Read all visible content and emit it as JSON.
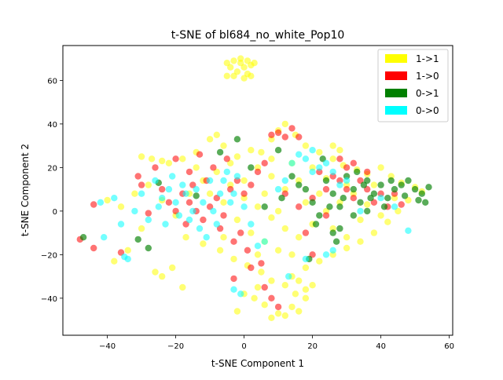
{
  "chart_data": {
    "type": "scatter",
    "title": "t-SNE of bl684_no_white_Pop10",
    "xlabel": "t-SNE Component 1",
    "ylabel": "t-SNE Component 2",
    "xlim": [
      -53,
      61
    ],
    "ylim": [
      -57,
      76
    ],
    "xticks": [
      -40,
      -20,
      0,
      20,
      40,
      60
    ],
    "yticks": [
      -40,
      -20,
      0,
      20,
      40,
      60
    ],
    "xtick_labels": [
      "−40",
      "−20",
      "0",
      "20",
      "40",
      "60"
    ],
    "ytick_labels": [
      "−40",
      "−20",
      "0",
      "20",
      "40",
      "60"
    ],
    "grid": false,
    "legend_position": "top-right",
    "series": [
      {
        "name": "1->1",
        "color": "#ffff00",
        "opacity": 0.55,
        "points": [
          [
            -5,
            68
          ],
          [
            -3,
            69
          ],
          [
            -1,
            68
          ],
          [
            1,
            69
          ],
          [
            2,
            67
          ],
          [
            -4,
            66
          ],
          [
            0,
            66
          ],
          [
            -2,
            64
          ],
          [
            1,
            63
          ],
          [
            -5,
            62
          ],
          [
            -3,
            62
          ],
          [
            0,
            61
          ],
          [
            2,
            62
          ],
          [
            -1,
            70
          ],
          [
            3,
            68
          ],
          [
            -30,
            25
          ],
          [
            -27,
            24
          ],
          [
            -24,
            23
          ],
          [
            -22,
            22
          ],
          [
            -18,
            24
          ],
          [
            -14,
            27
          ],
          [
            -10,
            33
          ],
          [
            -8,
            35
          ],
          [
            -6,
            30
          ],
          [
            -2,
            25
          ],
          [
            2,
            28
          ],
          [
            5,
            27
          ],
          [
            8,
            33
          ],
          [
            10,
            37
          ],
          [
            12,
            40
          ],
          [
            15,
            35
          ],
          [
            18,
            30
          ],
          [
            22,
            27
          ],
          [
            26,
            24
          ],
          [
            29,
            21
          ],
          [
            33,
            19
          ],
          [
            36,
            17
          ],
          [
            40,
            20
          ],
          [
            43,
            16
          ],
          [
            46,
            13
          ],
          [
            50,
            11
          ],
          [
            52,
            9
          ],
          [
            48,
            5
          ],
          [
            45,
            0
          ],
          [
            42,
            -5
          ],
          [
            38,
            -10
          ],
          [
            34,
            -14
          ],
          [
            30,
            -17
          ],
          [
            26,
            -20
          ],
          [
            22,
            -23
          ],
          [
            18,
            -26
          ],
          [
            14,
            -30
          ],
          [
            12,
            -34
          ],
          [
            15,
            -38
          ],
          [
            18,
            -40
          ],
          [
            14,
            -44
          ],
          [
            10,
            -47
          ],
          [
            8,
            -49
          ],
          [
            12,
            -48
          ],
          [
            16,
            -46
          ],
          [
            6,
            -43
          ],
          [
            3,
            -40
          ],
          [
            0,
            -38
          ],
          [
            4,
            -35
          ],
          [
            8,
            -32
          ],
          [
            16,
            -32
          ],
          [
            20,
            -34
          ],
          [
            18,
            -36
          ],
          [
            -2,
            -46
          ],
          [
            5,
            -28
          ],
          [
            1,
            -25
          ],
          [
            -3,
            -22
          ],
          [
            -7,
            -18
          ],
          [
            -12,
            -15
          ],
          [
            -17,
            -12
          ],
          [
            -21,
            -26
          ],
          [
            -24,
            -30
          ],
          [
            -26,
            -28
          ],
          [
            -18,
            -35
          ],
          [
            -30,
            -8
          ],
          [
            -34,
            -18
          ],
          [
            -38,
            -23
          ],
          [
            -40,
            5
          ],
          [
            -36,
            2
          ],
          [
            -32,
            8
          ],
          [
            -28,
            12
          ],
          [
            -24,
            5
          ],
          [
            -20,
            -2
          ],
          [
            -16,
            8
          ],
          [
            -12,
            14
          ],
          [
            -8,
            18
          ],
          [
            -4,
            12
          ],
          [
            0,
            6
          ],
          [
            4,
            2
          ],
          [
            8,
            -3
          ],
          [
            12,
            -8
          ],
          [
            16,
            -12
          ],
          [
            20,
            -6
          ],
          [
            24,
            0
          ],
          [
            28,
            4
          ],
          [
            32,
            8
          ],
          [
            36,
            3
          ],
          [
            40,
            -2
          ],
          [
            44,
            6
          ],
          [
            38,
            12
          ],
          [
            30,
            12
          ],
          [
            24,
            15
          ],
          [
            20,
            20
          ],
          [
            16,
            14
          ],
          [
            12,
            10
          ],
          [
            8,
            16
          ],
          [
            4,
            20
          ],
          [
            0,
            14
          ],
          [
            -4,
            22
          ],
          [
            14,
            22
          ],
          [
            6,
            8
          ],
          [
            10,
            0
          ],
          [
            18,
            4
          ],
          [
            22,
            8
          ],
          [
            26,
            -8
          ],
          [
            30,
            -12
          ],
          [
            34,
            -4
          ],
          [
            2,
            -10
          ],
          [
            -2,
            -4
          ],
          [
            6,
            -14
          ],
          [
            10,
            -18
          ],
          [
            14,
            -20
          ],
          [
            -6,
            4
          ],
          [
            -10,
            8
          ],
          [
            -14,
            20
          ],
          [
            26,
            30
          ],
          [
            28,
            28
          ],
          [
            8,
            24
          ],
          [
            -6,
            -12
          ],
          [
            4,
            -20
          ]
        ]
      },
      {
        "name": "1->0",
        "color": "#ff0000",
        "opacity": 0.55,
        "points": [
          [
            -48,
            -13
          ],
          [
            -44,
            -17
          ],
          [
            -44,
            3
          ],
          [
            -36,
            -19
          ],
          [
            -31,
            16
          ],
          [
            -30,
            12
          ],
          [
            -28,
            -1
          ],
          [
            -26,
            20
          ],
          [
            -24,
            10
          ],
          [
            -22,
            4
          ],
          [
            -20,
            0
          ],
          [
            -18,
            8
          ],
          [
            -16,
            4
          ],
          [
            -14,
            0
          ],
          [
            -12,
            -4
          ],
          [
            -10,
            2
          ],
          [
            -8,
            6
          ],
          [
            -6,
            -2
          ],
          [
            -4,
            10
          ],
          [
            -2,
            14
          ],
          [
            0,
            8
          ],
          [
            2,
            12
          ],
          [
            4,
            18
          ],
          [
            6,
            22
          ],
          [
            -13,
            26
          ],
          [
            -9,
            20
          ],
          [
            -5,
            24
          ],
          [
            -11,
            14
          ],
          [
            -15,
            12
          ],
          [
            -7,
            -8
          ],
          [
            -3,
            -14
          ],
          [
            1,
            -18
          ],
          [
            5,
            -24
          ],
          [
            -17,
            -6
          ],
          [
            -20,
            24
          ],
          [
            -16,
            18
          ],
          [
            8,
            35
          ],
          [
            10,
            36
          ],
          [
            12,
            34
          ],
          [
            14,
            38
          ],
          [
            16,
            34
          ],
          [
            12,
            8
          ],
          [
            16,
            2
          ],
          [
            20,
            6
          ],
          [
            24,
            10
          ],
          [
            28,
            14
          ],
          [
            30,
            10
          ],
          [
            32,
            6
          ],
          [
            34,
            14
          ],
          [
            36,
            10
          ],
          [
            38,
            4
          ],
          [
            40,
            8
          ],
          [
            42,
            2
          ],
          [
            44,
            8
          ],
          [
            36,
            18
          ],
          [
            30,
            20
          ],
          [
            26,
            16
          ],
          [
            22,
            18
          ],
          [
            18,
            -10
          ],
          [
            20,
            -20
          ],
          [
            24,
            -2
          ],
          [
            8,
            -40
          ],
          [
            10,
            -44
          ],
          [
            6,
            -35
          ],
          [
            2,
            -26
          ],
          [
            -1,
            -10
          ],
          [
            28,
            24
          ],
          [
            32,
            22
          ],
          [
            -3,
            -31
          ],
          [
            46,
            3
          ]
        ]
      },
      {
        "name": "0->1",
        "color": "#008000",
        "opacity": 0.65,
        "points": [
          [
            -47,
            -12
          ],
          [
            -31,
            -13
          ],
          [
            -28,
            -17
          ],
          [
            -25,
            13
          ],
          [
            -14,
            7
          ],
          [
            -7,
            27
          ],
          [
            -2,
            33
          ],
          [
            2,
            20
          ],
          [
            6,
            2
          ],
          [
            10,
            28
          ],
          [
            14,
            16
          ],
          [
            18,
            10
          ],
          [
            20,
            4
          ],
          [
            22,
            -2
          ],
          [
            24,
            14
          ],
          [
            26,
            8
          ],
          [
            28,
            2
          ],
          [
            30,
            16
          ],
          [
            32,
            10
          ],
          [
            34,
            4
          ],
          [
            36,
            0
          ],
          [
            38,
            8
          ],
          [
            40,
            12
          ],
          [
            42,
            6
          ],
          [
            44,
            10
          ],
          [
            46,
            12
          ],
          [
            48,
            14
          ],
          [
            50,
            10
          ],
          [
            52,
            8
          ],
          [
            54,
            11
          ],
          [
            36,
            14
          ],
          [
            32,
            -2
          ],
          [
            28,
            -8
          ],
          [
            26,
            -10
          ],
          [
            27,
            -14
          ],
          [
            19,
            -22
          ],
          [
            23,
            24
          ],
          [
            16,
            12
          ],
          [
            11,
            6
          ],
          [
            41,
            2
          ],
          [
            47,
            7
          ],
          [
            51,
            5
          ],
          [
            53,
            4
          ],
          [
            35,
            12
          ],
          [
            29,
            6
          ],
          [
            25,
            2
          ],
          [
            21,
            -6
          ],
          [
            33,
            18
          ],
          [
            37,
            6
          ],
          [
            43,
            14
          ]
        ]
      },
      {
        "name": "0->0",
        "color": "#00ffff",
        "opacity": 0.55,
        "points": [
          [
            -42,
            4
          ],
          [
            -41,
            -12
          ],
          [
            -38,
            6
          ],
          [
            -36,
            -6
          ],
          [
            -35,
            -21
          ],
          [
            -34,
            -22
          ],
          [
            -32,
            0
          ],
          [
            -30,
            8
          ],
          [
            -28,
            -4
          ],
          [
            -26,
            14
          ],
          [
            -25,
            2
          ],
          [
            -24,
            6
          ],
          [
            -23,
            -6
          ],
          [
            -22,
            10
          ],
          [
            -21,
            16
          ],
          [
            -20,
            4
          ],
          [
            -19,
            -2
          ],
          [
            -18,
            12
          ],
          [
            -17,
            8
          ],
          [
            -16,
            -4
          ],
          [
            -15,
            0
          ],
          [
            -14,
            10
          ],
          [
            -13,
            -8
          ],
          [
            -12,
            4
          ],
          [
            -11,
            -12
          ],
          [
            -10,
            14
          ],
          [
            -9,
            0
          ],
          [
            -8,
            -6
          ],
          [
            -7,
            8
          ],
          [
            -6,
            14
          ],
          [
            -5,
            18
          ],
          [
            -4,
            4
          ],
          [
            -3,
            8
          ],
          [
            -2,
            16
          ],
          [
            0,
            2
          ],
          [
            2,
            -6
          ],
          [
            4,
            -16
          ],
          [
            6,
            -14
          ],
          [
            10,
            10
          ],
          [
            12,
            14
          ],
          [
            14,
            22
          ],
          [
            16,
            26
          ],
          [
            18,
            24
          ],
          [
            20,
            28
          ],
          [
            22,
            20
          ],
          [
            24,
            22
          ],
          [
            26,
            18
          ],
          [
            28,
            12
          ],
          [
            30,
            14
          ],
          [
            34,
            0
          ],
          [
            40,
            6
          ],
          [
            44,
            2
          ],
          [
            48,
            -9
          ],
          [
            13,
            -30
          ],
          [
            18,
            -22
          ],
          [
            24,
            -20
          ],
          [
            26,
            -18
          ],
          [
            -3,
            -36
          ],
          [
            -1,
            -38
          ],
          [
            20,
            18
          ]
        ]
      }
    ]
  }
}
